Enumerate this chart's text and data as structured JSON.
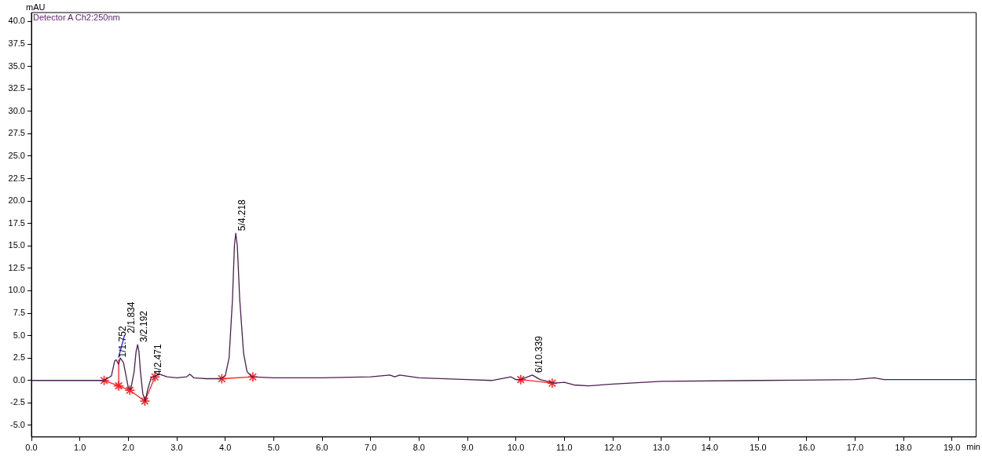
{
  "chart_data": {
    "type": "line",
    "title": "Detector A Ch2:250nm",
    "ylabel": "mAU",
    "xlabel": "min",
    "xlim": [
      0,
      19.5
    ],
    "ylim": [
      -6.3,
      41
    ],
    "xticks": [
      {
        "value": 0,
        "label": "0.0"
      },
      {
        "value": 1,
        "label": "1.0"
      },
      {
        "value": 2,
        "label": "2.0"
      },
      {
        "value": 3,
        "label": "3.0"
      },
      {
        "value": 4,
        "label": "4.0"
      },
      {
        "value": 5,
        "label": "5.0"
      },
      {
        "value": 6,
        "label": "6.0"
      },
      {
        "value": 7,
        "label": "7.0"
      },
      {
        "value": 8,
        "label": "8.0"
      },
      {
        "value": 9,
        "label": "9.0"
      },
      {
        "value": 10,
        "label": "10.0"
      },
      {
        "value": 11,
        "label": "11.0"
      },
      {
        "value": 12,
        "label": "12.0"
      },
      {
        "value": 13,
        "label": "13.0"
      },
      {
        "value": 14,
        "label": "14.0"
      },
      {
        "value": 15,
        "label": "15.0"
      },
      {
        "value": 16,
        "label": "16.0"
      },
      {
        "value": 17,
        "label": "17.0"
      },
      {
        "value": 18,
        "label": "18.0"
      },
      {
        "value": 19,
        "label": "19.0"
      }
    ],
    "yticks": [
      {
        "value": -5,
        "label": "-5.0"
      },
      {
        "value": -2.5,
        "label": "-2.5"
      },
      {
        "value": 0,
        "label": "0.0"
      },
      {
        "value": 2.5,
        "label": "2.5"
      },
      {
        "value": 5,
        "label": "5.0"
      },
      {
        "value": 7.5,
        "label": "7.5"
      },
      {
        "value": 10,
        "label": "10.0"
      },
      {
        "value": 12.5,
        "label": "12.5"
      },
      {
        "value": 15,
        "label": "15.0"
      },
      {
        "value": 17.5,
        "label": "17.5"
      },
      {
        "value": 20,
        "label": "20.0"
      },
      {
        "value": 22.5,
        "label": "22.5"
      },
      {
        "value": 25,
        "label": "25.0"
      },
      {
        "value": 27.5,
        "label": "27.5"
      },
      {
        "value": 30,
        "label": "30.0"
      },
      {
        "value": 32.5,
        "label": "32.5"
      },
      {
        "value": 35,
        "label": "35.0"
      },
      {
        "value": 37.5,
        "label": "37.5"
      },
      {
        "value": 40,
        "label": "40.0"
      }
    ],
    "grid": false,
    "legend": false,
    "series": [
      {
        "color": "#4b1f4f",
        "marker": "none",
        "x": [
          0,
          0.5,
          1,
          1.5,
          1.65,
          1.72,
          1.75,
          1.8,
          1.834,
          1.9,
          2,
          2.05,
          2.12,
          2.16,
          2.192,
          2.22,
          2.25,
          2.3,
          2.35,
          2.4,
          2.471,
          2.55,
          2.65,
          2.8,
          3,
          3.2,
          3.27,
          3.35,
          3.6,
          3.9,
          4,
          4.08,
          4.15,
          4.19,
          4.218,
          4.25,
          4.3,
          4.38,
          4.45,
          4.55,
          5,
          6,
          7,
          7.4,
          7.5,
          7.6,
          8,
          9,
          9.5,
          9.9,
          10,
          10.1,
          10.339,
          10.5,
          10.8,
          11,
          11.2,
          11.5,
          12,
          13,
          15,
          17,
          17.4,
          17.6,
          19.5
        ],
        "values": [
          0,
          0,
          0,
          0,
          0.5,
          2.2,
          2.3,
          1.8,
          2.5,
          2,
          -0.8,
          -1,
          1,
          3.2,
          4,
          3.2,
          1,
          -1.5,
          -2.3,
          -1,
          0.3,
          0.5,
          0.7,
          0.4,
          0.3,
          0.4,
          0.7,
          0.3,
          0.2,
          0.2,
          0.5,
          2.5,
          9,
          15,
          16.4,
          15,
          9,
          3,
          1,
          0.4,
          0.3,
          0.3,
          0.4,
          0.6,
          0.4,
          0.6,
          0.3,
          0.1,
          0,
          0.4,
          0.1,
          0.1,
          0.6,
          0.1,
          -0.3,
          -0.2,
          -0.5,
          -0.6,
          -0.4,
          -0.1,
          0,
          0.1,
          0.3,
          0.1,
          0.1
        ]
      },
      {
        "color": "#ff2020",
        "marker": "cross",
        "x": [
          1.5,
          1.8,
          2.03,
          2.34,
          2.55
        ],
        "values": [
          0,
          -0.6,
          -1.1,
          -2.3,
          0.4
        ]
      },
      {
        "color": "#ff2020",
        "marker": "none",
        "x": [
          1.8,
          1.8
        ],
        "values": [
          -0.6,
          2.3
        ]
      },
      {
        "color": "#ff2020",
        "marker": "cross",
        "x": [
          3.93,
          4.57
        ],
        "values": [
          0.2,
          0.4
        ]
      },
      {
        "color": "#ff2020",
        "marker": "cross",
        "x": [
          10.1,
          10.75
        ],
        "values": [
          0.1,
          -0.3
        ]
      },
      {
        "color": "#2020ff",
        "marker": "none",
        "x": [
          1.8,
          1.92
        ],
        "values": [
          2.6,
          5
        ]
      }
    ],
    "annotations": [
      {
        "text": "1/1.752",
        "x": 1.752,
        "y": 2.3
      },
      {
        "text": "2/1.834",
        "x": 1.92,
        "y": 5
      },
      {
        "text": "3/2.192",
        "x": 2.192,
        "y": 4
      },
      {
        "text": "4/2.471",
        "x": 2.471,
        "y": 0.3
      },
      {
        "text": "5/4.218",
        "x": 4.218,
        "y": 16.4
      },
      {
        "text": "6/10.339",
        "x": 10.339,
        "y": 0.6
      }
    ]
  }
}
